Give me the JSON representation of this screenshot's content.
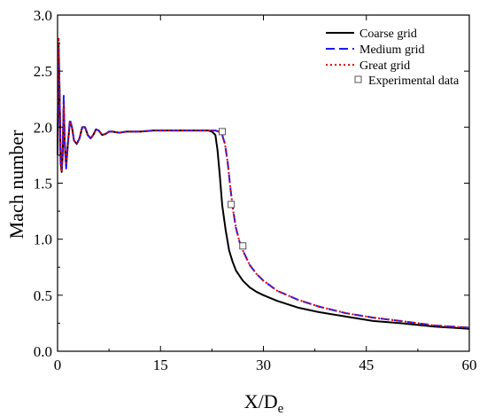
{
  "chart_data": {
    "type": "line",
    "xlabel_main": "X/D",
    "xlabel_sub": "e",
    "ylabel": "Mach number",
    "xlim": [
      0,
      60
    ],
    "ylim": [
      0.0,
      3.0
    ],
    "x_ticks": [
      0,
      15,
      30,
      45,
      60
    ],
    "x_tick_labels": [
      "0",
      "15",
      "30",
      "45",
      "60"
    ],
    "y_ticks": [
      0.0,
      0.5,
      1.0,
      1.5,
      2.0,
      2.5,
      3.0
    ],
    "y_tick_labels": [
      "0.0",
      "0.5",
      "1.0",
      "1.5",
      "2.0",
      "2.5",
      "3.0"
    ],
    "grid": false,
    "legend_position": "top-right",
    "series": [
      {
        "name": "Coarse grid",
        "color": "#000000",
        "dash": "solid",
        "x": [
          0,
          0.15,
          0.3,
          0.45,
          0.6,
          0.75,
          0.9,
          1.05,
          1.25,
          1.5,
          1.8,
          2.1,
          2.4,
          2.8,
          3.2,
          3.6,
          4.0,
          4.4,
          4.8,
          5.2,
          5.6,
          6.0,
          6.5,
          7.0,
          7.5,
          8.0,
          9,
          10,
          12,
          14,
          16,
          18,
          20,
          21,
          22,
          22.5,
          23,
          23.3,
          23.6,
          24,
          24.5,
          25,
          25.5,
          26,
          27,
          28,
          29,
          30,
          32,
          35,
          38,
          42,
          46,
          50,
          55,
          60
        ],
        "y": [
          1.75,
          2.75,
          2.3,
          1.7,
          1.6,
          1.75,
          2.2,
          1.85,
          1.65,
          1.85,
          2.05,
          2.0,
          1.88,
          1.85,
          1.9,
          2.0,
          2.0,
          1.93,
          1.9,
          1.93,
          1.98,
          1.97,
          1.93,
          1.94,
          1.96,
          1.96,
          1.95,
          1.96,
          1.96,
          1.97,
          1.97,
          1.97,
          1.97,
          1.97,
          1.97,
          1.96,
          1.93,
          1.8,
          1.6,
          1.3,
          1.08,
          0.9,
          0.8,
          0.72,
          0.63,
          0.57,
          0.53,
          0.5,
          0.45,
          0.39,
          0.35,
          0.31,
          0.27,
          0.25,
          0.22,
          0.2
        ]
      },
      {
        "name": "Medium grid",
        "color": "#1a1aff",
        "dash": "10,5",
        "x": [
          0,
          0.15,
          0.3,
          0.45,
          0.6,
          0.75,
          0.9,
          1.05,
          1.25,
          1.5,
          1.8,
          2.1,
          2.4,
          2.8,
          3.2,
          3.6,
          4.0,
          4.4,
          4.8,
          5.2,
          5.6,
          6.0,
          6.5,
          7.0,
          7.5,
          8.0,
          9,
          10,
          12,
          14,
          16,
          18,
          20,
          22,
          23,
          23.5,
          24,
          24.4,
          24.8,
          25.2,
          25.6,
          26,
          26.5,
          27,
          28,
          29,
          30,
          32,
          35,
          38,
          42,
          46,
          50,
          55,
          60
        ],
        "y": [
          1.75,
          2.7,
          2.25,
          1.68,
          1.62,
          1.8,
          2.28,
          1.85,
          1.63,
          1.85,
          2.07,
          2.0,
          1.88,
          1.85,
          1.9,
          2.0,
          2.0,
          1.93,
          1.9,
          1.93,
          1.98,
          1.97,
          1.93,
          1.94,
          1.96,
          1.96,
          1.95,
          1.96,
          1.96,
          1.97,
          1.97,
          1.97,
          1.97,
          1.97,
          1.97,
          1.96,
          1.93,
          1.85,
          1.68,
          1.45,
          1.25,
          1.1,
          0.98,
          0.9,
          0.77,
          0.69,
          0.63,
          0.54,
          0.46,
          0.4,
          0.34,
          0.3,
          0.27,
          0.23,
          0.21
        ]
      },
      {
        "name": "Great grid",
        "color": "#e00000",
        "dash": "2,3",
        "x": [
          0,
          0.15,
          0.3,
          0.45,
          0.6,
          0.75,
          0.9,
          1.05,
          1.25,
          1.5,
          1.8,
          2.1,
          2.4,
          2.8,
          3.2,
          3.6,
          4.0,
          4.4,
          4.8,
          5.2,
          5.6,
          6.0,
          6.5,
          7.0,
          7.5,
          8.0,
          9,
          10,
          12,
          14,
          16,
          18,
          20,
          22,
          23,
          23.5,
          24,
          24.4,
          24.8,
          25.2,
          25.6,
          26,
          26.5,
          27,
          28,
          29,
          30,
          32,
          35,
          38,
          42,
          46,
          50,
          55,
          60
        ],
        "y": [
          1.75,
          2.8,
          2.3,
          1.65,
          1.6,
          1.78,
          2.2,
          1.85,
          1.66,
          1.85,
          2.05,
          2.0,
          1.88,
          1.85,
          1.9,
          2.0,
          2.0,
          1.93,
          1.9,
          1.93,
          1.98,
          1.97,
          1.93,
          1.94,
          1.96,
          1.96,
          1.95,
          1.96,
          1.96,
          1.97,
          1.97,
          1.97,
          1.97,
          1.97,
          1.97,
          1.96,
          1.93,
          1.85,
          1.68,
          1.45,
          1.25,
          1.1,
          0.98,
          0.9,
          0.77,
          0.69,
          0.63,
          0.54,
          0.46,
          0.4,
          0.34,
          0.3,
          0.27,
          0.23,
          0.21
        ]
      }
    ],
    "experimental": {
      "name": "Experimental data",
      "x": [
        24.0,
        25.3,
        27.0
      ],
      "y": [
        1.96,
        1.31,
        0.94
      ]
    }
  }
}
